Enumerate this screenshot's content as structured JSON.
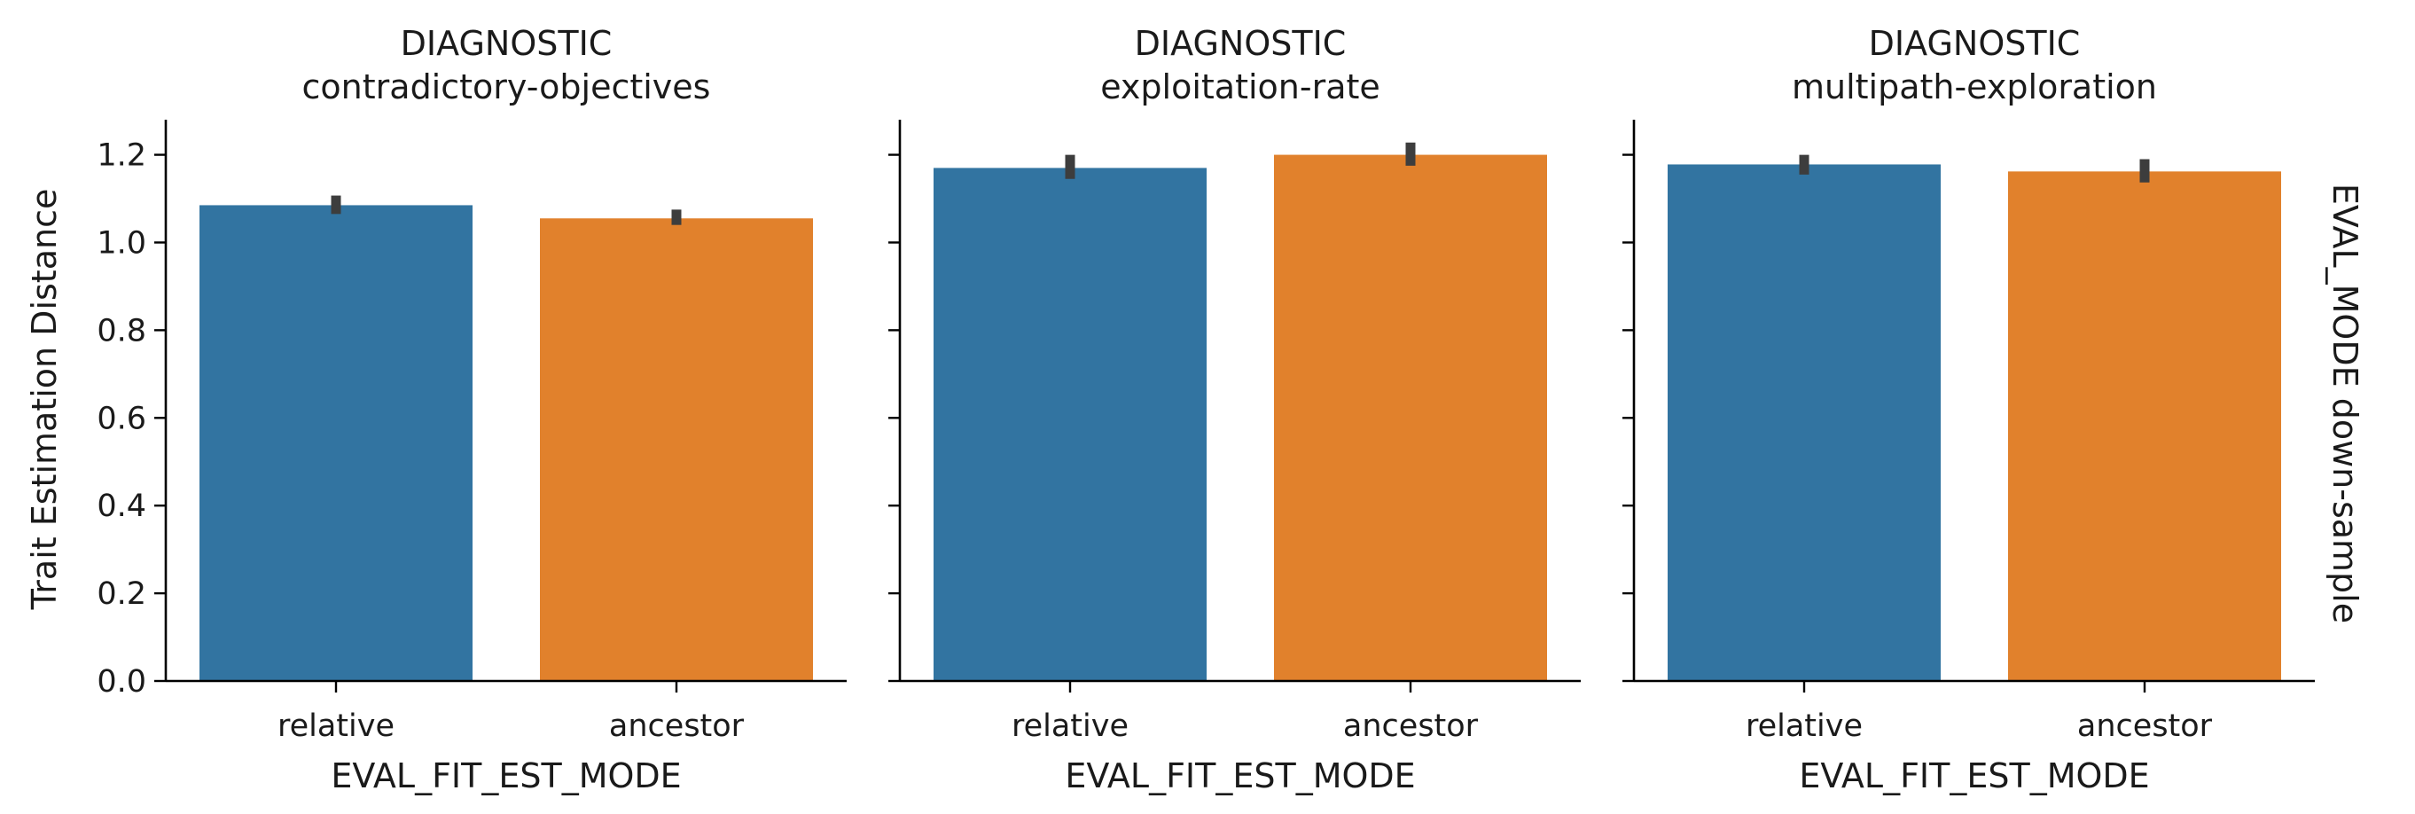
{
  "chart_data": {
    "type": "bar",
    "layout": "facet-grid",
    "ylabel": "Trait Estimation Distance",
    "xlabel": "EVAL_FIT_EST_MODE",
    "row_label": "EVAL_MODE down-sample",
    "ylim": [
      0,
      1.28
    ],
    "yticks": [
      "0.0",
      "0.2",
      "0.4",
      "0.6",
      "0.8",
      "1.0",
      "1.2"
    ],
    "grid": false,
    "categories": [
      "relative",
      "ancestor"
    ],
    "colors": [
      "#3274a1",
      "#e1812c"
    ],
    "panels": [
      {
        "title_line1": "DIAGNOSTIC",
        "title_line2": "contradictory-objectives",
        "values": [
          1.085,
          1.055
        ],
        "error": [
          [
            1.065,
            1.107
          ],
          [
            1.04,
            1.075
          ]
        ]
      },
      {
        "title_line1": "DIAGNOSTIC",
        "title_line2": "exploitation-rate",
        "values": [
          1.17,
          1.2
        ],
        "error": [
          [
            1.145,
            1.2
          ],
          [
            1.175,
            1.228
          ]
        ]
      },
      {
        "title_line1": "DIAGNOSTIC",
        "title_line2": "multipath-exploration",
        "values": [
          1.178,
          1.162
        ],
        "error": [
          [
            1.155,
            1.2
          ],
          [
            1.137,
            1.19
          ]
        ]
      }
    ]
  }
}
